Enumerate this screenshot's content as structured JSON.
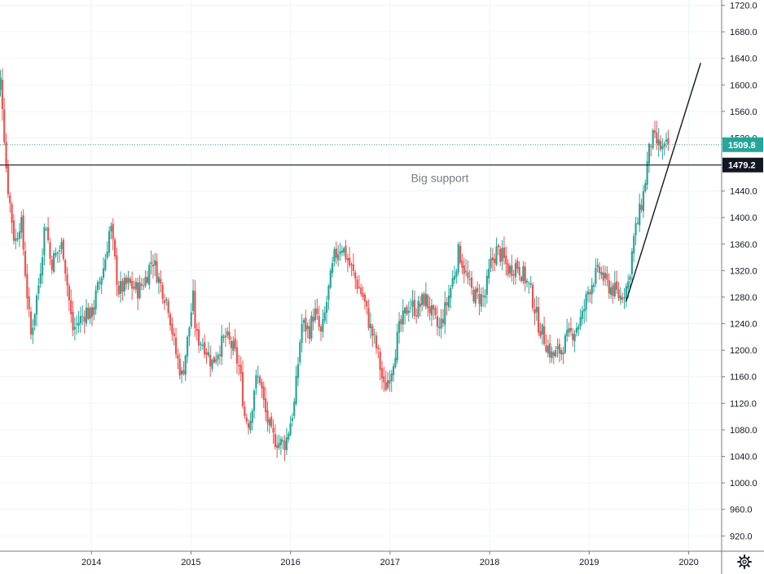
{
  "chart_data": {
    "type": "candlestick",
    "x_axis": {
      "ticks": [
        "2014",
        "2015",
        "2016",
        "2017",
        "2018",
        "2019",
        "2020"
      ],
      "range": [
        2013.0,
        2020.2
      ]
    },
    "y_axis": {
      "ticks": [
        "1720.0",
        "1680.0",
        "1640.0",
        "1600.0",
        "1560.0",
        "1520.0",
        "1480.0",
        "1440.0",
        "1400.0",
        "1360.0",
        "1320.0",
        "1280.0",
        "1240.0",
        "1200.0",
        "1160.0",
        "1120.0",
        "1080.0",
        "1040.0",
        "1000.0",
        "960.0",
        "920.0"
      ],
      "range": [
        897,
        1728
      ]
    },
    "grid": true,
    "price_path": [
      [
        2013.0,
        1670
      ],
      [
        2013.04,
        1560
      ],
      [
        2013.1,
        1610
      ],
      [
        2013.16,
        1460
      ],
      [
        2013.24,
        1360
      ],
      [
        2013.3,
        1400
      ],
      [
        2013.4,
        1220
      ],
      [
        2013.48,
        1300
      ],
      [
        2013.55,
        1400
      ],
      [
        2013.6,
        1330
      ],
      [
        2013.72,
        1360
      ],
      [
        2013.82,
        1230
      ],
      [
        2013.96,
        1260
      ],
      [
        2014.0,
        1250
      ],
      [
        2014.14,
        1330
      ],
      [
        2014.2,
        1390
      ],
      [
        2014.28,
        1290
      ],
      [
        2014.38,
        1300
      ],
      [
        2014.48,
        1290
      ],
      [
        2014.56,
        1310
      ],
      [
        2014.62,
        1340
      ],
      [
        2014.7,
        1300
      ],
      [
        2014.78,
        1270
      ],
      [
        2014.85,
        1200
      ],
      [
        2014.92,
        1160
      ],
      [
        2014.98,
        1220
      ],
      [
        2015.03,
        1280
      ],
      [
        2015.06,
        1220
      ],
      [
        2015.14,
        1210
      ],
      [
        2015.22,
        1180
      ],
      [
        2015.28,
        1200
      ],
      [
        2015.36,
        1220
      ],
      [
        2015.44,
        1200
      ],
      [
        2015.5,
        1170
      ],
      [
        2015.55,
        1100
      ],
      [
        2015.6,
        1090
      ],
      [
        2015.65,
        1150
      ],
      [
        2015.7,
        1160
      ],
      [
        2015.75,
        1110
      ],
      [
        2015.82,
        1070
      ],
      [
        2015.9,
        1060
      ],
      [
        2015.96,
        1060
      ],
      [
        2016.05,
        1120
      ],
      [
        2016.12,
        1240
      ],
      [
        2016.2,
        1230
      ],
      [
        2016.25,
        1260
      ],
      [
        2016.32,
        1220
      ],
      [
        2016.38,
        1280
      ],
      [
        2016.45,
        1340
      ],
      [
        2016.52,
        1360
      ],
      [
        2016.6,
        1330
      ],
      [
        2016.68,
        1300
      ],
      [
        2016.74,
        1280
      ],
      [
        2016.8,
        1240
      ],
      [
        2016.88,
        1200
      ],
      [
        2016.95,
        1140
      ],
      [
        2017.02,
        1170
      ],
      [
        2017.1,
        1230
      ],
      [
        2017.2,
        1270
      ],
      [
        2017.28,
        1260
      ],
      [
        2017.36,
        1280
      ],
      [
        2017.44,
        1250
      ],
      [
        2017.5,
        1230
      ],
      [
        2017.58,
        1270
      ],
      [
        2017.66,
        1320
      ],
      [
        2017.7,
        1350
      ],
      [
        2017.76,
        1320
      ],
      [
        2017.82,
        1290
      ],
      [
        2017.88,
        1280
      ],
      [
        2017.96,
        1280
      ],
      [
        2018.02,
        1330
      ],
      [
        2018.08,
        1350
      ],
      [
        2018.14,
        1340
      ],
      [
        2018.2,
        1320
      ],
      [
        2018.28,
        1330
      ],
      [
        2018.36,
        1310
      ],
      [
        2018.42,
        1290
      ],
      [
        2018.5,
        1240
      ],
      [
        2018.58,
        1210
      ],
      [
        2018.64,
        1190
      ],
      [
        2018.72,
        1200
      ],
      [
        2018.8,
        1220
      ],
      [
        2018.86,
        1230
      ],
      [
        2018.94,
        1250
      ],
      [
        2019.0,
        1290
      ],
      [
        2019.06,
        1310
      ],
      [
        2019.12,
        1320
      ],
      [
        2019.18,
        1300
      ],
      [
        2019.26,
        1290
      ],
      [
        2019.32,
        1280
      ],
      [
        2019.4,
        1300
      ],
      [
        2019.46,
        1370
      ],
      [
        2019.52,
        1410
      ],
      [
        2019.56,
        1440
      ],
      [
        2019.6,
        1490
      ],
      [
        2019.64,
        1520
      ],
      [
        2019.7,
        1510
      ],
      [
        2019.76,
        1500
      ],
      [
        2019.8,
        1510
      ]
    ],
    "annotations": {
      "current_price": "1509.8",
      "support_price": "1479.2",
      "support_label": "Big support"
    },
    "trendline": {
      "from": [
        2019.37,
        1273
      ],
      "to": [
        2020.12,
        1633
      ]
    },
    "colors": {
      "up": "#26a69a",
      "down": "#ef5350",
      "current": "#26a69a",
      "support": "#131722"
    }
  }
}
